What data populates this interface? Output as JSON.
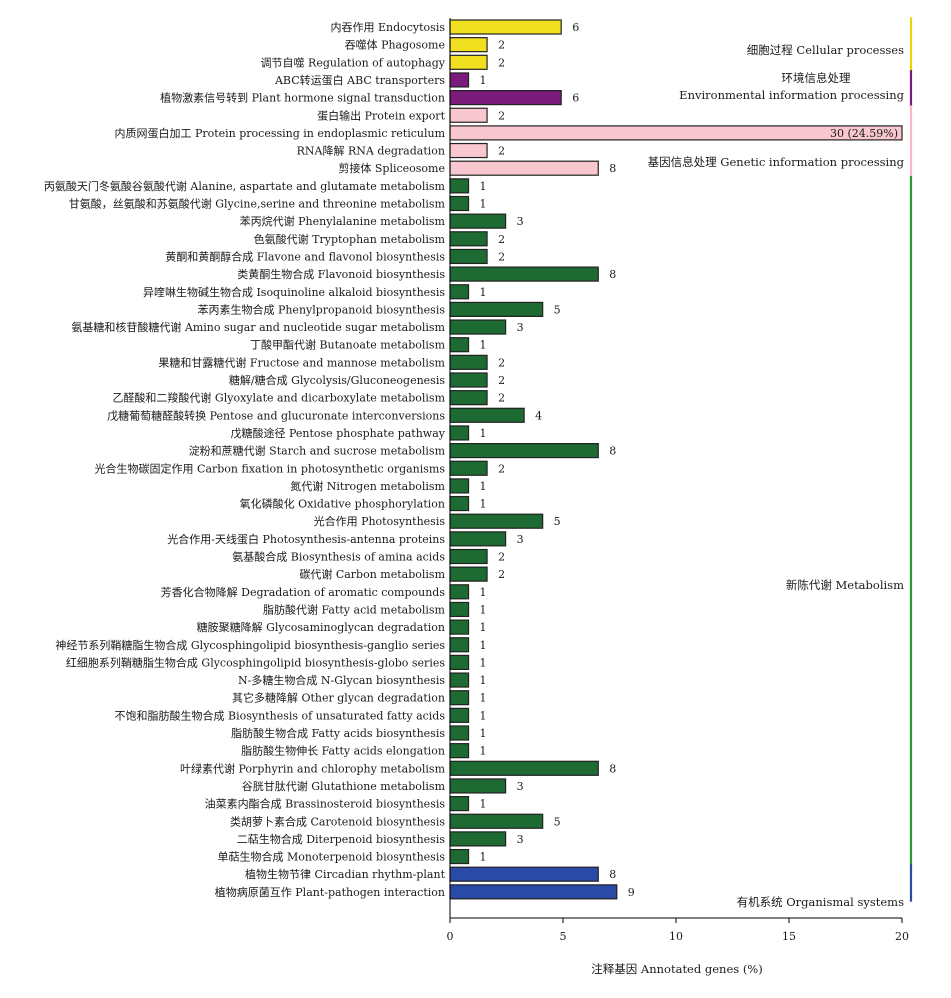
{
  "chart_data": {
    "type": "bar",
    "orientation": "horizontal",
    "xlabel": "注释基因 Annotated genes (%)",
    "ylabel": "",
    "title": "",
    "xlim": [
      0,
      20
    ],
    "xticks": [
      0,
      5,
      10,
      15,
      20
    ],
    "grid": false,
    "colors": {
      "cellular": "#f0e020",
      "environmental": "#7a1a7a",
      "genetic": "#f9c7cf",
      "metabolism": "#1d6b32",
      "organismal": "#2a4aa8",
      "bar_outline": "#222222"
    },
    "groups": [
      {
        "key": "cellular",
        "label": "细胞过程 Cellular processes",
        "line_color": "#e8d800",
        "start": 0,
        "end": 2
      },
      {
        "key": "environmental",
        "label_lines": [
          "环境信息处理",
          "Environmental information processing"
        ],
        "line_color": "#7a1a7a",
        "start": 3,
        "end": 4
      },
      {
        "key": "genetic",
        "label": "基因信息处理 Genetic information processing",
        "line_color": "#f5b8c4",
        "start": 5,
        "end": 8
      },
      {
        "key": "metabolism",
        "label": "新陈代谢 Metabolism",
        "line_color": "#2a9a3a",
        "start": 9,
        "end": 47
      },
      {
        "key": "organismal",
        "label": "有机系统 Organismal systems",
        "line_color": "#2a4aa8",
        "start": 48,
        "end": 49
      }
    ],
    "bars": [
      {
        "label": "内吞作用 Endocytosis",
        "value": 4.92,
        "count_label": "6",
        "group": "cellular"
      },
      {
        "label": "吞噬体 Phagosome",
        "value": 1.64,
        "count_label": "2",
        "group": "cellular"
      },
      {
        "label": "调节自噬 Regulation of autophagy",
        "value": 1.64,
        "count_label": "2",
        "group": "cellular"
      },
      {
        "label": "ABC转运蛋白 ABC transporters",
        "value": 0.82,
        "count_label": "1",
        "group": "environmental"
      },
      {
        "label": "植物激素信号转到 Plant hormone signal transduction",
        "value": 4.92,
        "count_label": "6",
        "group": "environmental"
      },
      {
        "label": "蛋白输出 Protein export",
        "value": 1.64,
        "count_label": "2",
        "group": "genetic"
      },
      {
        "label": "内质网蛋白加工 Protein processing in endoplasmic reticulum",
        "value": 20,
        "count_label": "30 (24.59%)",
        "group": "genetic",
        "label_inside": true
      },
      {
        "label": "RNA降解 RNA degradation",
        "value": 1.64,
        "count_label": "2",
        "group": "genetic"
      },
      {
        "label": "剪接体 Spliceosome",
        "value": 6.56,
        "count_label": "8",
        "group": "genetic"
      },
      {
        "label": "丙氨酸天门冬氨酸谷氨酸代谢 Alanine, aspartate and glutamate metabolism",
        "value": 0.82,
        "count_label": "1",
        "group": "metabolism"
      },
      {
        "label": "甘氨酸，丝氨酸和苏氨酸代谢 Glycine,serine and threonine metabolism",
        "value": 0.82,
        "count_label": "1",
        "group": "metabolism"
      },
      {
        "label": "苯丙烷代谢 Phenylalanine metabolism",
        "value": 2.46,
        "count_label": "3",
        "group": "metabolism"
      },
      {
        "label": "色氨酸代谢 Tryptophan metabolism",
        "value": 1.64,
        "count_label": "2",
        "group": "metabolism"
      },
      {
        "label": "黄酮和黄酮醇合成 Flavone and flavonol biosynthesis",
        "value": 1.64,
        "count_label": "2",
        "group": "metabolism"
      },
      {
        "label": "类黄酮生物合成 Flavonoid biosynthesis",
        "value": 6.56,
        "count_label": "8",
        "group": "metabolism"
      },
      {
        "label": "异喹啉生物碱生物合成 Isoquinoline alkaloid biosynthesis",
        "value": 0.82,
        "count_label": "1",
        "group": "metabolism"
      },
      {
        "label": "苯丙素生物合成 Phenylpropanoid biosynthesis",
        "value": 4.1,
        "count_label": "5",
        "group": "metabolism"
      },
      {
        "label": "氨基糖和核苷酸糖代谢 Amino sugar and nucleotide sugar metabolism",
        "value": 2.46,
        "count_label": "3",
        "group": "metabolism"
      },
      {
        "label": "丁酸甲酯代谢 Butanoate metabolism",
        "value": 0.82,
        "count_label": "1",
        "group": "metabolism"
      },
      {
        "label": "果糖和甘露糖代谢 Fructose and mannose metabolism",
        "value": 1.64,
        "count_label": "2",
        "group": "metabolism"
      },
      {
        "label": "糖解/糖合成 Glycolysis/Gluconeogenesis",
        "value": 1.64,
        "count_label": "2",
        "group": "metabolism"
      },
      {
        "label": "乙醛酸和二羧酸代谢 Glyoxylate and dicarboxylate metabolism",
        "value": 1.64,
        "count_label": "2",
        "group": "metabolism"
      },
      {
        "label": "戊糖葡萄糖醛酸转换 Pentose and glucuronate interconversions",
        "value": 3.28,
        "count_label": "4",
        "group": "metabolism"
      },
      {
        "label": "戊糖酸途径 Pentose phosphate pathway",
        "value": 0.82,
        "count_label": "1",
        "group": "metabolism"
      },
      {
        "label": "淀粉和蔗糖代谢 Starch and sucrose metabolism",
        "value": 6.56,
        "count_label": "8",
        "group": "metabolism"
      },
      {
        "label": "光合生物碳固定作用 Carbon fixation in photosynthetic organisms",
        "value": 1.64,
        "count_label": "2",
        "group": "metabolism"
      },
      {
        "label": "氮代谢 Nitrogen metabolism",
        "value": 0.82,
        "count_label": "1",
        "group": "metabolism"
      },
      {
        "label": "氧化磷酸化 Oxidative phosphorylation",
        "value": 0.82,
        "count_label": "1",
        "group": "metabolism"
      },
      {
        "label": "光合作用 Photosynthesis",
        "value": 4.1,
        "count_label": "5",
        "group": "metabolism"
      },
      {
        "label": "光合作用-天线蛋白 Photosynthesis-antenna proteins",
        "value": 2.46,
        "count_label": "3",
        "group": "metabolism"
      },
      {
        "label": "氨基酸合成 Biosynthesis of amina acids",
        "value": 1.64,
        "count_label": "2",
        "group": "metabolism"
      },
      {
        "label": "碳代谢 Carbon metabolism",
        "value": 1.64,
        "count_label": "2",
        "group": "metabolism"
      },
      {
        "label": "芳香化合物降解 Degradation of aromatic compounds",
        "value": 0.82,
        "count_label": "1",
        "group": "metabolism"
      },
      {
        "label": "脂肪酸代谢 Fatty acid metabolism",
        "value": 0.82,
        "count_label": "1",
        "group": "metabolism"
      },
      {
        "label": "糖胺聚糖降解 Glycosaminoglycan degradation",
        "value": 0.82,
        "count_label": "1",
        "group": "metabolism"
      },
      {
        "label": "神经节系列鞘糖脂生物合成 Glycosphingolipid biosynthesis-ganglio series",
        "value": 0.82,
        "count_label": "1",
        "group": "metabolism"
      },
      {
        "label": "红细胞系列鞘糖脂生物合成 Glycosphingolipid biosynthesis-globo series",
        "value": 0.82,
        "count_label": "1",
        "group": "metabolism"
      },
      {
        "label": "N-多糖生物合成 N-Glycan biosynthesis",
        "value": 0.82,
        "count_label": "1",
        "group": "metabolism"
      },
      {
        "label": "其它多糖降解 Other glycan degradation",
        "value": 0.82,
        "count_label": "1",
        "group": "metabolism"
      },
      {
        "label": "不饱和脂肪酸生物合成 Biosynthesis of unsaturated fatty acids",
        "value": 0.82,
        "count_label": "1",
        "group": "metabolism"
      },
      {
        "label": "脂肪酸生物合成 Fatty acids biosynthesis",
        "value": 0.82,
        "count_label": "1",
        "group": "metabolism"
      },
      {
        "label": "脂肪酸生物伸长 Fatty acids elongation",
        "value": 0.82,
        "count_label": "1",
        "group": "metabolism"
      },
      {
        "label": "叶绿素代谢 Porphyrin and chlorophy metabolism",
        "value": 6.56,
        "count_label": "8",
        "group": "metabolism"
      },
      {
        "label": "谷胱甘肽代谢 Glutathione metabolism",
        "value": 2.46,
        "count_label": "3",
        "group": "metabolism"
      },
      {
        "label": "油菜素内酯合成 Brassinosteroid biosynthesis",
        "value": 0.82,
        "count_label": "1",
        "group": "metabolism"
      },
      {
        "label": "类胡萝卜素合成 Carotenoid biosynthesis",
        "value": 4.1,
        "count_label": "5",
        "group": "metabolism"
      },
      {
        "label": "二萜生物合成 Diterpenoid biosynthesis",
        "value": 2.46,
        "count_label": "3",
        "group": "metabolism"
      },
      {
        "label": "单萜生物合成 Monoterpenoid biosynthesis",
        "value": 0.82,
        "count_label": "1",
        "group": "metabolism"
      },
      {
        "label": "植物生物节律 Circadian rhythm-plant",
        "value": 6.56,
        "count_label": "8",
        "group": "organismal"
      },
      {
        "label": "植物病原菌互作 Plant-pathogen interaction",
        "value": 7.38,
        "count_label": "9",
        "group": "organismal"
      }
    ]
  }
}
